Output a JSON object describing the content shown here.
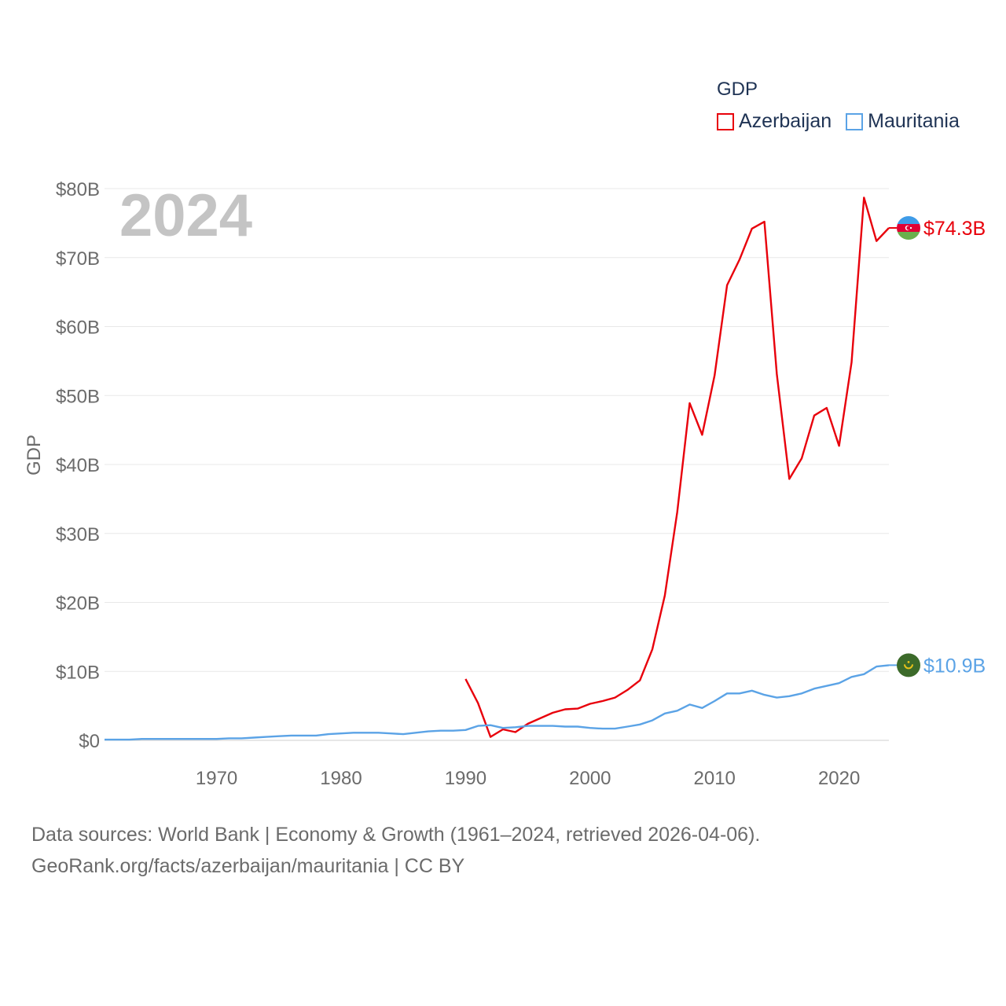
{
  "chart_data": {
    "type": "line",
    "title": "",
    "year_label": "2024",
    "ylabel": "GDP",
    "xlabel": "",
    "xlim": [
      1961,
      2024
    ],
    "ylim": [
      0,
      80
    ],
    "y_unit": "billion USD",
    "y_ticks": [
      {
        "value": 0,
        "label": "$0"
      },
      {
        "value": 10,
        "label": "$10B"
      },
      {
        "value": 20,
        "label": "$20B"
      },
      {
        "value": 30,
        "label": "$30B"
      },
      {
        "value": 40,
        "label": "$40B"
      },
      {
        "value": 50,
        "label": "$50B"
      },
      {
        "value": 60,
        "label": "$60B"
      },
      {
        "value": 70,
        "label": "$70B"
      },
      {
        "value": 80,
        "label": "$80B"
      }
    ],
    "x_ticks": [
      {
        "value": 1970,
        "label": "1970"
      },
      {
        "value": 1980,
        "label": "1980"
      },
      {
        "value": 1990,
        "label": "1990"
      },
      {
        "value": 2000,
        "label": "2000"
      },
      {
        "value": 2010,
        "label": "2010"
      },
      {
        "value": 2020,
        "label": "2020"
      }
    ],
    "legend": {
      "title": "GDP",
      "position": "top-right"
    },
    "series": [
      {
        "name": "Azerbaijan",
        "color": "#e8000b",
        "flag_icon": "azerbaijan-flag-icon",
        "end_label": "$74.3B",
        "points": [
          [
            1990,
            8.9
          ],
          [
            1991,
            5.4
          ],
          [
            1992,
            0.5
          ],
          [
            1993,
            1.6
          ],
          [
            1994,
            1.2
          ],
          [
            1995,
            2.4
          ],
          [
            1996,
            3.2
          ],
          [
            1997,
            4.0
          ],
          [
            1998,
            4.5
          ],
          [
            1999,
            4.6
          ],
          [
            2000,
            5.3
          ],
          [
            2001,
            5.7
          ],
          [
            2002,
            6.2
          ],
          [
            2003,
            7.3
          ],
          [
            2004,
            8.7
          ],
          [
            2005,
            13.2
          ],
          [
            2006,
            21.0
          ],
          [
            2007,
            33.1
          ],
          [
            2008,
            48.9
          ],
          [
            2009,
            44.3
          ],
          [
            2010,
            52.9
          ],
          [
            2011,
            66.0
          ],
          [
            2012,
            69.7
          ],
          [
            2013,
            74.2
          ],
          [
            2014,
            75.2
          ],
          [
            2015,
            53.1
          ],
          [
            2016,
            37.9
          ],
          [
            2017,
            40.9
          ],
          [
            2018,
            47.1
          ],
          [
            2019,
            48.2
          ],
          [
            2020,
            42.7
          ],
          [
            2021,
            54.8
          ],
          [
            2022,
            78.7
          ],
          [
            2023,
            72.4
          ],
          [
            2024,
            74.3
          ]
        ]
      },
      {
        "name": "Mauritania",
        "color": "#5ba3e6",
        "flag_icon": "mauritania-flag-icon",
        "end_label": "$10.9B",
        "points": [
          [
            1961,
            0.1
          ],
          [
            1962,
            0.1
          ],
          [
            1963,
            0.1
          ],
          [
            1964,
            0.2
          ],
          [
            1965,
            0.2
          ],
          [
            1966,
            0.2
          ],
          [
            1967,
            0.2
          ],
          [
            1968,
            0.2
          ],
          [
            1969,
            0.2
          ],
          [
            1970,
            0.2
          ],
          [
            1971,
            0.3
          ],
          [
            1972,
            0.3
          ],
          [
            1973,
            0.4
          ],
          [
            1974,
            0.5
          ],
          [
            1975,
            0.6
          ],
          [
            1976,
            0.7
          ],
          [
            1977,
            0.7
          ],
          [
            1978,
            0.7
          ],
          [
            1979,
            0.9
          ],
          [
            1980,
            1.0
          ],
          [
            1981,
            1.1
          ],
          [
            1982,
            1.1
          ],
          [
            1983,
            1.1
          ],
          [
            1984,
            1.0
          ],
          [
            1985,
            0.9
          ],
          [
            1986,
            1.1
          ],
          [
            1987,
            1.3
          ],
          [
            1988,
            1.4
          ],
          [
            1989,
            1.4
          ],
          [
            1990,
            1.5
          ],
          [
            1991,
            2.1
          ],
          [
            1992,
            2.2
          ],
          [
            1993,
            1.8
          ],
          [
            1994,
            1.9
          ],
          [
            1995,
            2.1
          ],
          [
            1996,
            2.1
          ],
          [
            1997,
            2.1
          ],
          [
            1998,
            2.0
          ],
          [
            1999,
            2.0
          ],
          [
            2000,
            1.8
          ],
          [
            2001,
            1.7
          ],
          [
            2002,
            1.7
          ],
          [
            2003,
            2.0
          ],
          [
            2004,
            2.3
          ],
          [
            2005,
            2.9
          ],
          [
            2006,
            3.9
          ],
          [
            2007,
            4.3
          ],
          [
            2008,
            5.2
          ],
          [
            2009,
            4.7
          ],
          [
            2010,
            5.7
          ],
          [
            2011,
            6.8
          ],
          [
            2012,
            6.8
          ],
          [
            2013,
            7.2
          ],
          [
            2014,
            6.6
          ],
          [
            2015,
            6.2
          ],
          [
            2016,
            6.4
          ],
          [
            2017,
            6.8
          ],
          [
            2018,
            7.5
          ],
          [
            2019,
            7.9
          ],
          [
            2020,
            8.3
          ],
          [
            2021,
            9.2
          ],
          [
            2022,
            9.6
          ],
          [
            2023,
            10.7
          ],
          [
            2024,
            10.9
          ]
        ]
      }
    ],
    "source_lines": [
      "Data sources: World Bank | Economy & Growth (1961–2024, retrieved 2026-04-06).",
      "GeoRank.org/facts/azerbaijan/mauritania | CC BY"
    ]
  }
}
